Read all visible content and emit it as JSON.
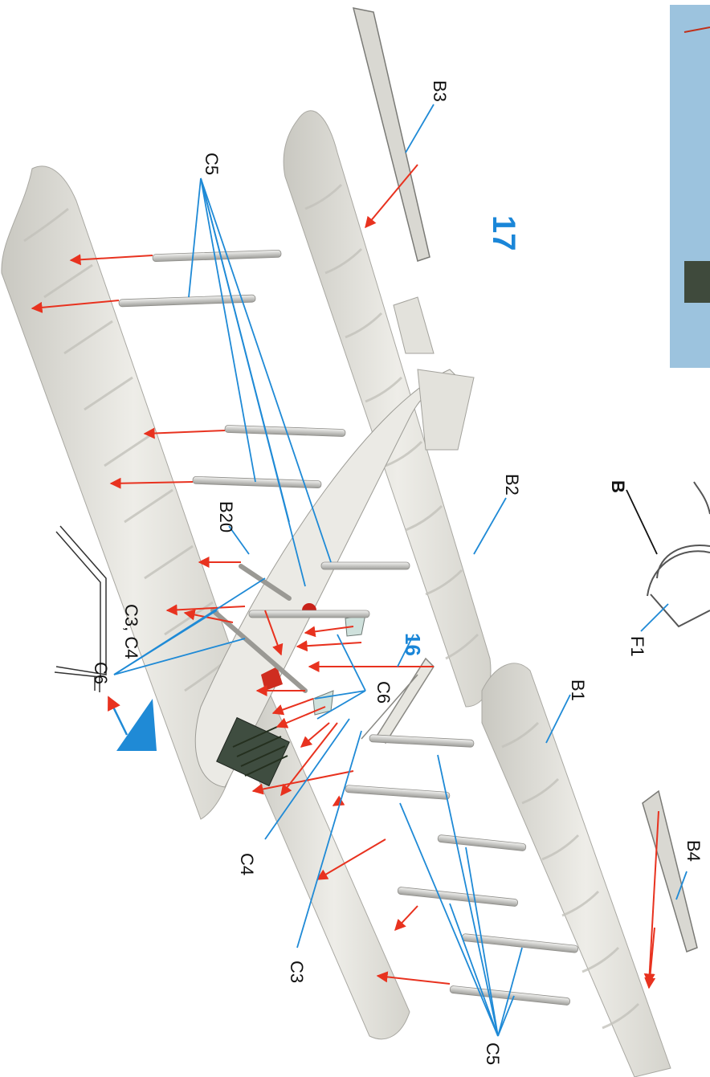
{
  "step_numbers": {
    "main": "17",
    "secondary": "16"
  },
  "labels": {
    "b3": "B3",
    "b2": "B2",
    "b1": "B1",
    "b4": "B4",
    "b20": "B20",
    "c5_top": "C5",
    "c5_bottom": "C5",
    "c6_left": "C6",
    "c6_right": "C6",
    "c4": "C4",
    "c3": "C3",
    "f1": "F1",
    "b_inset": "B",
    "c3_c4_detail": "C3, C4"
  },
  "colors": {
    "leader_line": "#1f8ad6",
    "arrow": "#e8321f",
    "step_number": "#1a86d8",
    "wing": "#e4e3dd",
    "wing_shade": "#bdbcb5",
    "photo_panel": "#9cc3de",
    "engine": "#3f4d40"
  }
}
